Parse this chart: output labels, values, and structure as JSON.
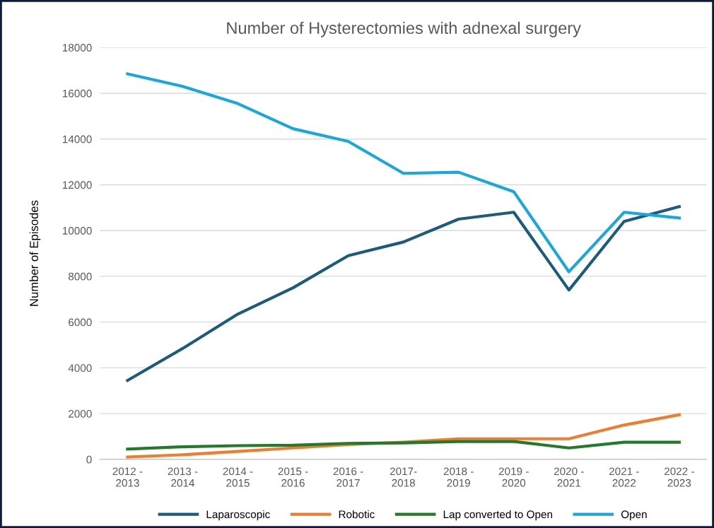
{
  "chart_data": {
    "type": "line",
    "title": "Number of Hysterectomies with adnexal surgery",
    "ylabel": "Number of Episodes",
    "categories": [
      "2012 -\n2013",
      "2013 -\n2014",
      "2014 -\n2015",
      "2015 -\n2016",
      "2016 -\n2017",
      "2017-\n2018",
      "2018 -\n2019",
      "2019 -\n2020",
      "2020 -\n2021",
      "2021 -\n2022",
      "2022 -\n2023"
    ],
    "series": [
      {
        "name": "Laparoscopic",
        "color": "#1d5b7c",
        "values": [
          3450,
          4850,
          6350,
          7500,
          8900,
          9500,
          10500,
          10800,
          7400,
          10400,
          11050
        ]
      },
      {
        "name": "Robotic",
        "color": "#ed7d31",
        "values": [
          100,
          200,
          350,
          500,
          650,
          750,
          900,
          900,
          900,
          1500,
          1950
        ]
      },
      {
        "name": "Lap converted to Open",
        "color": "#237a2a",
        "values": [
          450,
          550,
          600,
          620,
          700,
          720,
          780,
          780,
          500,
          750,
          750
        ]
      },
      {
        "name": "Open",
        "color": "#1aa7dc",
        "values": [
          16850,
          16300,
          15550,
          14450,
          13900,
          12500,
          12550,
          11700,
          8200,
          10800,
          10550
        ]
      }
    ],
    "ylim": [
      0,
      18000
    ],
    "yticks": [
      0,
      2000,
      4000,
      6000,
      8000,
      10000,
      12000,
      14000,
      16000,
      18000
    ],
    "grid": "y",
    "legend": "bottom",
    "marker": "none",
    "line_style": "solid"
  }
}
